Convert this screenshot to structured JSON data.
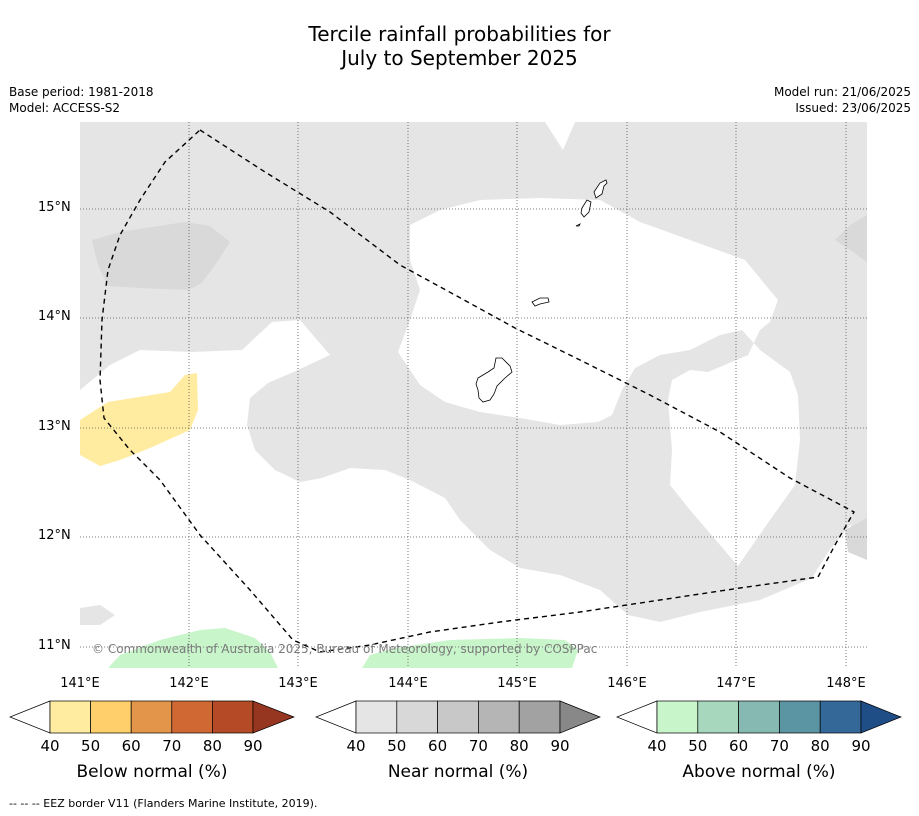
{
  "title": {
    "line1": "Tercile rainfall probabilities for",
    "line2": "July to September 2025"
  },
  "meta": {
    "base_period": "Base period: 1981-2018",
    "model": "Model: ACCESS-S2",
    "model_run": "Model run: 21/06/2025",
    "issued": "Issued: 23/06/2025"
  },
  "map": {
    "lat_ticks": [
      "15°N",
      "14°N",
      "13°N",
      "12°N",
      "11°N"
    ],
    "lon_ticks": [
      "141°E",
      "142°E",
      "143°E",
      "144°E",
      "145°E",
      "146°E",
      "147°E",
      "148°E"
    ],
    "copyright": "© Commonwealth of Australia 2025, Bureau of Meteorology, supported by COSPPac",
    "colors": {
      "near_normal_40": "#e5e5e5",
      "near_normal_50": "#d9d9d9",
      "below_normal_40": "#ffeca0",
      "above_normal_40": "#c9f5cb",
      "land_outline": "#000000",
      "eez_border": "#000000"
    }
  },
  "colorbars": [
    {
      "label": "Below normal (%)",
      "ticks": [
        "40",
        "50",
        "60",
        "70",
        "80",
        "90"
      ],
      "colors": [
        "#ffffff",
        "#ffeca0",
        "#fecf6a",
        "#e3964a",
        "#d06834",
        "#b44b26",
        "#963520"
      ]
    },
    {
      "label": "Near normal (%)",
      "ticks": [
        "40",
        "50",
        "60",
        "70",
        "80",
        "90"
      ],
      "colors": [
        "#ffffff",
        "#e5e5e5",
        "#d8d8d8",
        "#c8c8c8",
        "#b5b5b5",
        "#a2a2a2",
        "#888888"
      ]
    },
    {
      "label": "Above normal (%)",
      "ticks": [
        "40",
        "50",
        "60",
        "70",
        "80",
        "90"
      ],
      "colors": [
        "#ffffff",
        "#c9f5cb",
        "#a7d7bd",
        "#86b9b2",
        "#5b94a3",
        "#336899",
        "#1f4e87"
      ]
    }
  ],
  "footer": "-- -- -- EEZ border V11 (Flanders Marine Institute, 2019)."
}
